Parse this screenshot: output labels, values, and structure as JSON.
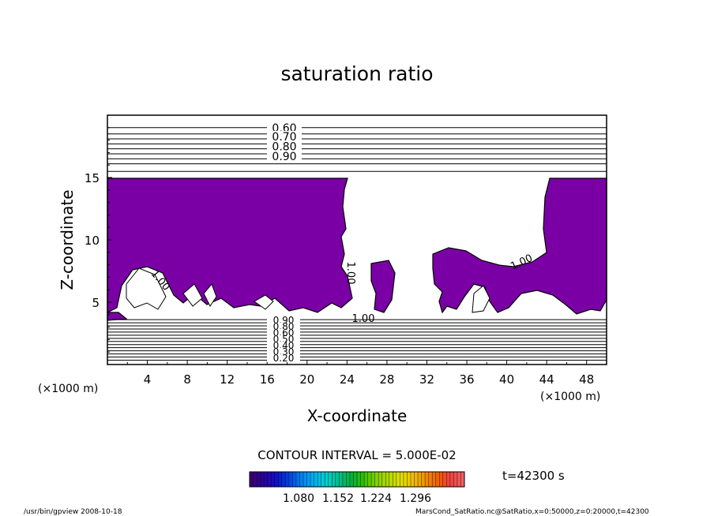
{
  "chart_data": {
    "type": "heatmap",
    "title": "saturation ratio",
    "xlabel": "X-coordinate",
    "ylabel": "Z-coordinate",
    "x_unit": "(×1000 m)",
    "y_unit": "(×1000 m)",
    "xlim": [
      0,
      50
    ],
    "ylim": [
      0,
      20
    ],
    "x_ticks": [
      "4",
      "8",
      "12",
      "16",
      "20",
      "24",
      "28",
      "32",
      "36",
      "40",
      "44",
      "48"
    ],
    "y_ticks": [
      "5",
      "10",
      "15"
    ],
    "contour_interval_label": "CONTOUR INTERVAL = 5.000E-02",
    "contour_labels_upper": [
      "0.60",
      "0.70",
      "0.80",
      "0.90"
    ],
    "contour_labels_lower": [
      "0.90",
      "0.80",
      "0.60",
      "0.50",
      "0.40",
      "0.30",
      "0.20"
    ],
    "contour_labels_inline": [
      "1.00",
      "1.00",
      "1.00",
      "1.00"
    ],
    "shaded_region_color": "#7a00a6",
    "upper_contour_levels_z": [
      19.0,
      18.5,
      18.1,
      17.7,
      17.3,
      16.9,
      16.5,
      16.1
    ],
    "lower_contour_levels_z": [
      3.6,
      3.35,
      3.1,
      2.85,
      2.6,
      2.35,
      2.1,
      1.85,
      1.6,
      1.35,
      1.1,
      0.85,
      0.6,
      0.35
    ],
    "colorbar": {
      "tick_labels": [
        "1.080",
        "1.152",
        "1.224",
        "1.296"
      ],
      "colors": [
        "#3a0070",
        "#2a00a0",
        "#1010c8",
        "#0040e0",
        "#0080f0",
        "#00b0f0",
        "#00d0d0",
        "#00c090",
        "#00b040",
        "#30c000",
        "#80d000",
        "#b0d800",
        "#e0e000",
        "#f0c000",
        "#f09000",
        "#f06000",
        "#f04040",
        "#f06060"
      ]
    },
    "time_label": "t=42300 s"
  },
  "footer": {
    "left": "/usr/bin/gpview   2008-10-18",
    "right": "MarsCond_SatRatio.nc@SatRatio,x=0:50000,z=0:20000,t=42300"
  }
}
